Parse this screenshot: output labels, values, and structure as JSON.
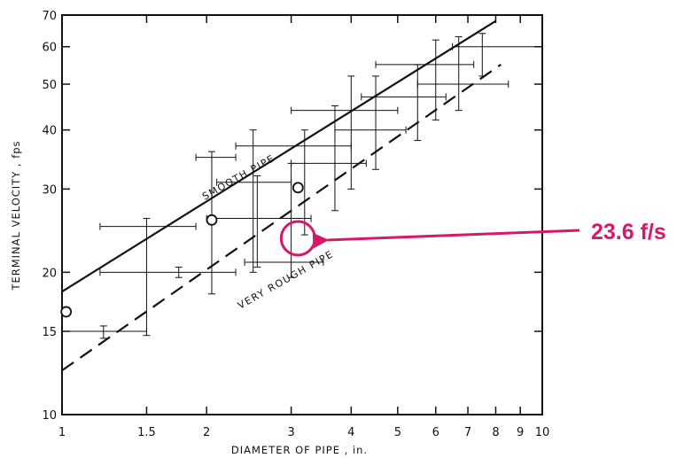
{
  "chart_data": {
    "type": "line",
    "xscale": "log",
    "yscale": "log",
    "xlabel": "DIAMETER OF PIPE , in.",
    "ylabel": "TERMINAL VELOCITY , fps",
    "xlim": [
      1,
      10
    ],
    "ylim": [
      10,
      70
    ],
    "xticks": [
      1,
      1.5,
      2,
      3,
      4,
      5,
      6,
      7,
      8,
      9,
      10
    ],
    "xtick_labels": [
      "1",
      "1.5",
      "2",
      "3",
      "4",
      "5",
      "6",
      "7",
      "8",
      "9",
      "10"
    ],
    "yticks": [
      10,
      15,
      20,
      30,
      40,
      50,
      60,
      70
    ],
    "ytick_labels": [
      "10",
      "15",
      "20",
      "30",
      "40",
      "50",
      "60",
      "70"
    ],
    "grid": false,
    "series": [
      {
        "name": "SMOOTH PIPE",
        "style": "solid",
        "x": [
          1,
          8
        ],
        "y": [
          18.2,
          68
        ]
      },
      {
        "name": "VERY ROUGH PIPE",
        "style": "dashed",
        "x": [
          1,
          8.2
        ],
        "y": [
          12.4,
          55
        ]
      }
    ],
    "points": [
      {
        "x": 1.02,
        "y": 16.5
      },
      {
        "x": 2.05,
        "y": 25.8
      },
      {
        "x": 3.1,
        "y": 30.2
      }
    ],
    "crosses": [
      {
        "x": 1.22,
        "y": 15.0,
        "x_lo": 1.0,
        "x_hi": 1.5,
        "y_lo": 14.5,
        "y_hi": 15.4
      },
      {
        "x": 1.5,
        "y": 25.0,
        "x_lo": 1.2,
        "x_hi": 1.9,
        "y_lo": 14.7,
        "y_hi": 26.0
      },
      {
        "x": 2.05,
        "y": 35.0,
        "x_lo": 1.9,
        "x_hi": 2.3,
        "y_lo": 18.0,
        "y_hi": 36.0
      },
      {
        "x": 1.75,
        "y": 20.0,
        "x_lo": 1.2,
        "x_hi": 2.3,
        "y_lo": 19.5,
        "y_hi": 20.5
      },
      {
        "x": 2.5,
        "y": 31.0,
        "x_lo": 2.1,
        "x_hi": 3.0,
        "y_lo": 20.0,
        "y_hi": 40.0
      },
      {
        "x": 2.55,
        "y": 26.0,
        "x_lo": 2.0,
        "x_hi": 3.3,
        "y_lo": 20.5,
        "y_hi": 32.0
      },
      {
        "x": 3.0,
        "y": 21.0,
        "x_lo": 2.4,
        "x_hi": 3.5,
        "y_lo": 19.5,
        "y_hi": 34.0
      },
      {
        "x": 3.2,
        "y": 37.0,
        "x_lo": 2.3,
        "x_hi": 4.0,
        "y_lo": 24.0,
        "y_hi": 40.0
      },
      {
        "x": 3.7,
        "y": 34.0,
        "x_lo": 3.0,
        "x_hi": 4.3,
        "y_lo": 27.0,
        "y_hi": 45.0
      },
      {
        "x": 4.0,
        "y": 44.0,
        "x_lo": 3.0,
        "x_hi": 5.0,
        "y_lo": 30.0,
        "y_hi": 52.0
      },
      {
        "x": 4.5,
        "y": 40.0,
        "x_lo": 3.7,
        "x_hi": 5.2,
        "y_lo": 33.0,
        "y_hi": 52.0
      },
      {
        "x": 5.5,
        "y": 47.0,
        "x_lo": 4.2,
        "x_hi": 6.3,
        "y_lo": 38.0,
        "y_hi": 55.0
      },
      {
        "x": 6.0,
        "y": 55.0,
        "x_lo": 4.5,
        "x_hi": 7.2,
        "y_lo": 42.0,
        "y_hi": 62.0
      },
      {
        "x": 6.7,
        "y": 50.0,
        "x_lo": 5.5,
        "x_hi": 8.5,
        "y_lo": 44.0,
        "y_hi": 63.0
      },
      {
        "x": 7.5,
        "y": 60.0,
        "x_lo": 6.5,
        "x_hi": 10.0,
        "y_lo": 52.0,
        "y_hi": 64.0
      }
    ],
    "annotation": {
      "text": "23.6 f/s",
      "target_x": 3.1,
      "target_y": 23.6,
      "color": "#d6186b"
    }
  },
  "colors": {
    "ink": "#111111",
    "accent": "#d6186b"
  }
}
